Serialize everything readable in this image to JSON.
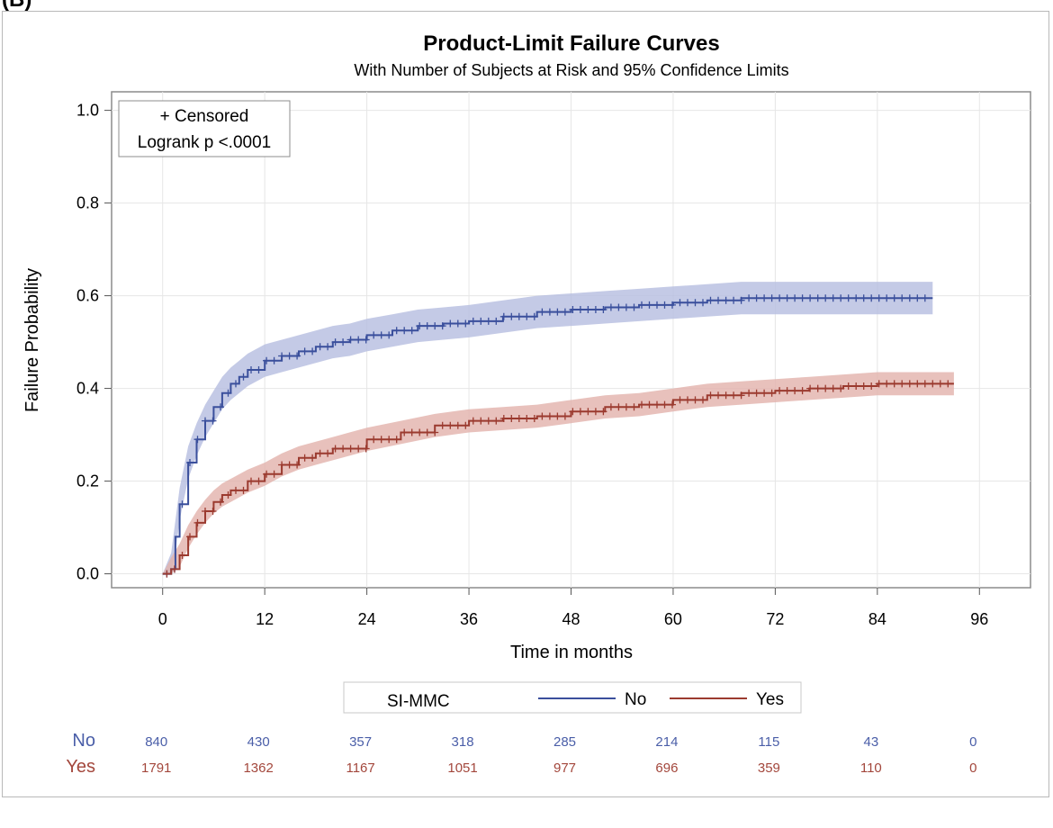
{
  "panel_label": "(B)",
  "chart_data": {
    "type": "line",
    "title": "Product-Limit Failure Curves",
    "subtitle": "With Number of Subjects at Risk and 95% Confidence Limits",
    "xlabel": "Time in months",
    "ylabel": "Failure Probability",
    "xlim": [
      -6,
      102
    ],
    "ylim": [
      -0.03,
      1.04
    ],
    "xticks": [
      0,
      12,
      24,
      36,
      48,
      60,
      72,
      84,
      96
    ],
    "yticks": [
      0.0,
      0.2,
      0.4,
      0.6,
      0.8,
      1.0
    ],
    "ytick_labels": [
      "0.0",
      "0.2",
      "0.4",
      "0.6",
      "0.8",
      "1.0"
    ],
    "grid": true,
    "inset": [
      "+ Censored",
      "Logrank p <.0001"
    ],
    "legend_title": "SI-MMC",
    "legend_position": "bottom",
    "series": [
      {
        "name": "No",
        "color": "#3a4f9c",
        "band_color": "#b5bde0",
        "x": [
          0,
          1,
          1.5,
          2,
          3,
          4,
          5,
          6,
          7,
          8,
          9,
          10,
          12,
          14,
          16,
          18,
          20,
          22,
          24,
          27,
          30,
          33,
          36,
          40,
          44,
          48,
          52,
          56,
          60,
          64,
          68,
          72,
          76,
          80,
          84,
          88,
          90.5
        ],
        "y": [
          0.0,
          0.01,
          0.08,
          0.15,
          0.24,
          0.29,
          0.33,
          0.36,
          0.39,
          0.41,
          0.425,
          0.44,
          0.46,
          0.47,
          0.48,
          0.49,
          0.5,
          0.505,
          0.515,
          0.525,
          0.535,
          0.54,
          0.545,
          0.555,
          0.565,
          0.57,
          0.575,
          0.58,
          0.585,
          0.59,
          0.595,
          0.595,
          0.595,
          0.595,
          0.595,
          0.595,
          0.595
        ],
        "ci_halfwidth": 0.035
      },
      {
        "name": "Yes",
        "color": "#9b3a2f",
        "band_color": "#e2b2ab",
        "x": [
          0,
          1,
          2,
          3,
          4,
          5,
          6,
          7,
          8,
          10,
          12,
          14,
          16,
          18,
          20,
          24,
          28,
          32,
          36,
          40,
          44,
          48,
          52,
          56,
          60,
          64,
          68,
          72,
          76,
          80,
          84,
          88,
          93
        ],
        "y": [
          0.0,
          0.01,
          0.04,
          0.08,
          0.11,
          0.135,
          0.155,
          0.17,
          0.18,
          0.2,
          0.215,
          0.235,
          0.25,
          0.26,
          0.27,
          0.29,
          0.305,
          0.32,
          0.33,
          0.335,
          0.34,
          0.35,
          0.36,
          0.365,
          0.375,
          0.385,
          0.39,
          0.395,
          0.4,
          0.405,
          0.41,
          0.41,
          0.41
        ],
        "ci_halfwidth": 0.025
      }
    ],
    "at_risk": {
      "times": [
        0,
        12,
        24,
        36,
        48,
        60,
        72,
        84,
        96
      ],
      "rows": [
        {
          "label": "No",
          "color": "#4a5ea8",
          "counts": [
            "840",
            "430",
            "357",
            "318",
            "285",
            "214",
            "115",
            "43",
            "0"
          ]
        },
        {
          "label": "Yes",
          "color": "#a3473c",
          "counts": [
            "1791",
            "1362",
            "1167",
            "1051",
            "977",
            "696",
            "359",
            "110",
            "0"
          ]
        }
      ]
    }
  }
}
